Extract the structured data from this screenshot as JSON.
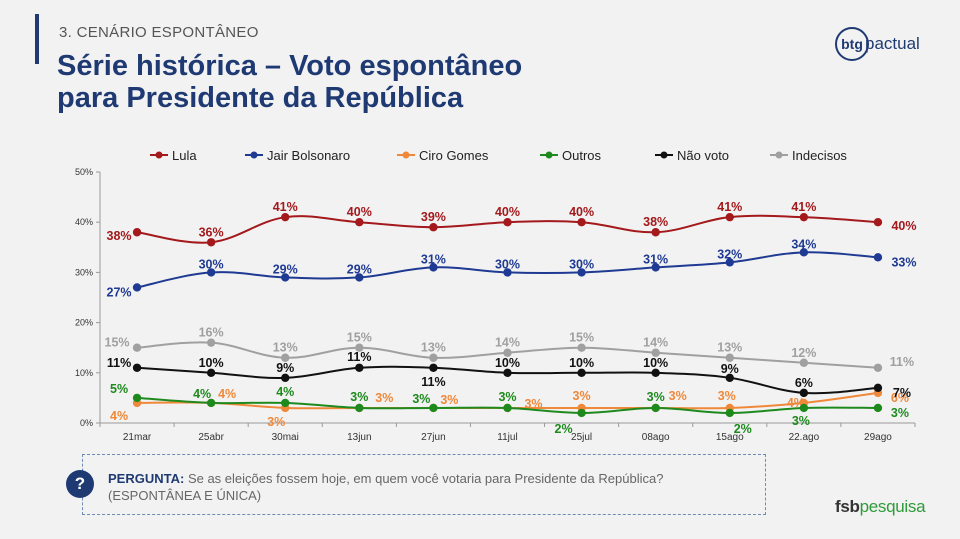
{
  "header": {
    "section": "3. CENÁRIO ESPONTÂNEO",
    "title_line1": "Série histórica – Voto espontâneo",
    "title_line2": "para Presidente da República"
  },
  "logo": {
    "mark": "btg",
    "rest_bold": "pactual",
    "text": "btg pactual"
  },
  "question": {
    "label": "PERGUNTA:",
    "text": "Se as eleições fossem hoje, em quem você votaria para Presidente da República?",
    "subtext": "(ESPONTÂNEA E ÚNICA)",
    "icon": "?"
  },
  "footer": {
    "brand_bold": "fsb",
    "brand_rest": "pesquisa"
  },
  "chart_data": {
    "type": "line",
    "categories": [
      "21mar",
      "25abr",
      "30mai",
      "13jun",
      "27jun",
      "11jul",
      "25jul",
      "08ago",
      "15ago",
      "22.ago",
      "29ago"
    ],
    "ylim": [
      0,
      50
    ],
    "yticks": [
      "0%",
      "10%",
      "20%",
      "30%",
      "40%",
      "50%"
    ],
    "grid": false,
    "legend_position": "top",
    "series": [
      {
        "name": "Lula",
        "color": "#a3191c",
        "values": [
          38,
          36,
          41,
          40,
          39,
          40,
          40,
          38,
          41,
          41,
          40
        ]
      },
      {
        "name": "Jair Bolsonaro",
        "color": "#1f3a93",
        "values": [
          27,
          30,
          29,
          29,
          31,
          30,
          30,
          31,
          32,
          34,
          33
        ]
      },
      {
        "name": "Ciro Gomes",
        "color": "#f0883a",
        "values": [
          4,
          4,
          3,
          3,
          3,
          3,
          3,
          3,
          3,
          4,
          6
        ]
      },
      {
        "name": "Outros",
        "color": "#1e8a1e",
        "values": [
          5,
          4,
          4,
          3,
          3,
          3,
          2,
          3,
          2,
          3,
          3
        ]
      },
      {
        "name": "Não voto",
        "color": "#111111",
        "values": [
          11,
          10,
          9,
          11,
          11,
          10,
          10,
          10,
          9,
          6,
          7
        ]
      },
      {
        "name": "Indecisos",
        "color": "#a0a0a0",
        "values": [
          15,
          16,
          13,
          15,
          13,
          14,
          15,
          14,
          13,
          12,
          11
        ]
      }
    ]
  }
}
